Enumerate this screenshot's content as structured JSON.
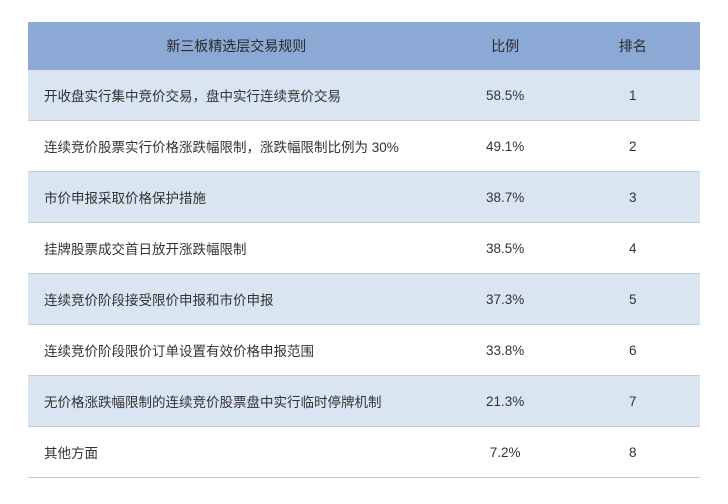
{
  "table": {
    "type": "table",
    "header_bg": "#8ca8d4",
    "row_odd_bg": "#dae5f2",
    "row_even_bg": "#ffffff",
    "border_color": "#c8c8c8",
    "text_color": "#333333",
    "header_text_color": "#2a2a2a",
    "font_size_header": 14,
    "font_size_body": 13.5,
    "columns": [
      {
        "key": "rule",
        "label": "新三板精选层交易规则",
        "width": "62%",
        "align": "left",
        "header_align": "center"
      },
      {
        "key": "ratio",
        "label": "比例",
        "width": "18%",
        "align": "center",
        "header_align": "center"
      },
      {
        "key": "rank",
        "label": "排名",
        "width": "20%",
        "align": "center",
        "header_align": "center"
      }
    ],
    "rows": [
      {
        "rule": "开收盘实行集中竞价交易，盘中实行连续竞价交易",
        "ratio": "58.5%",
        "rank": "1"
      },
      {
        "rule": "连续竞价股票实行价格涨跌幅限制，涨跌幅限制比例为 30%",
        "ratio": "49.1%",
        "rank": "2"
      },
      {
        "rule": "市价申报采取价格保护措施",
        "ratio": "38.7%",
        "rank": "3"
      },
      {
        "rule": "挂牌股票成交首日放开涨跌幅限制",
        "ratio": "38.5%",
        "rank": "4"
      },
      {
        "rule": "连续竞价阶段接受限价申报和市价申报",
        "ratio": "37.3%",
        "rank": "5"
      },
      {
        "rule": "连续竞价阶段限价订单设置有效价格申报范围",
        "ratio": "33.8%",
        "rank": "6"
      },
      {
        "rule": "无价格涨跌幅限制的连续竞价股票盘中实行临时停牌机制",
        "ratio": "21.3%",
        "rank": "7"
      },
      {
        "rule": "其他方面",
        "ratio": "7.2%",
        "rank": "8"
      }
    ]
  }
}
